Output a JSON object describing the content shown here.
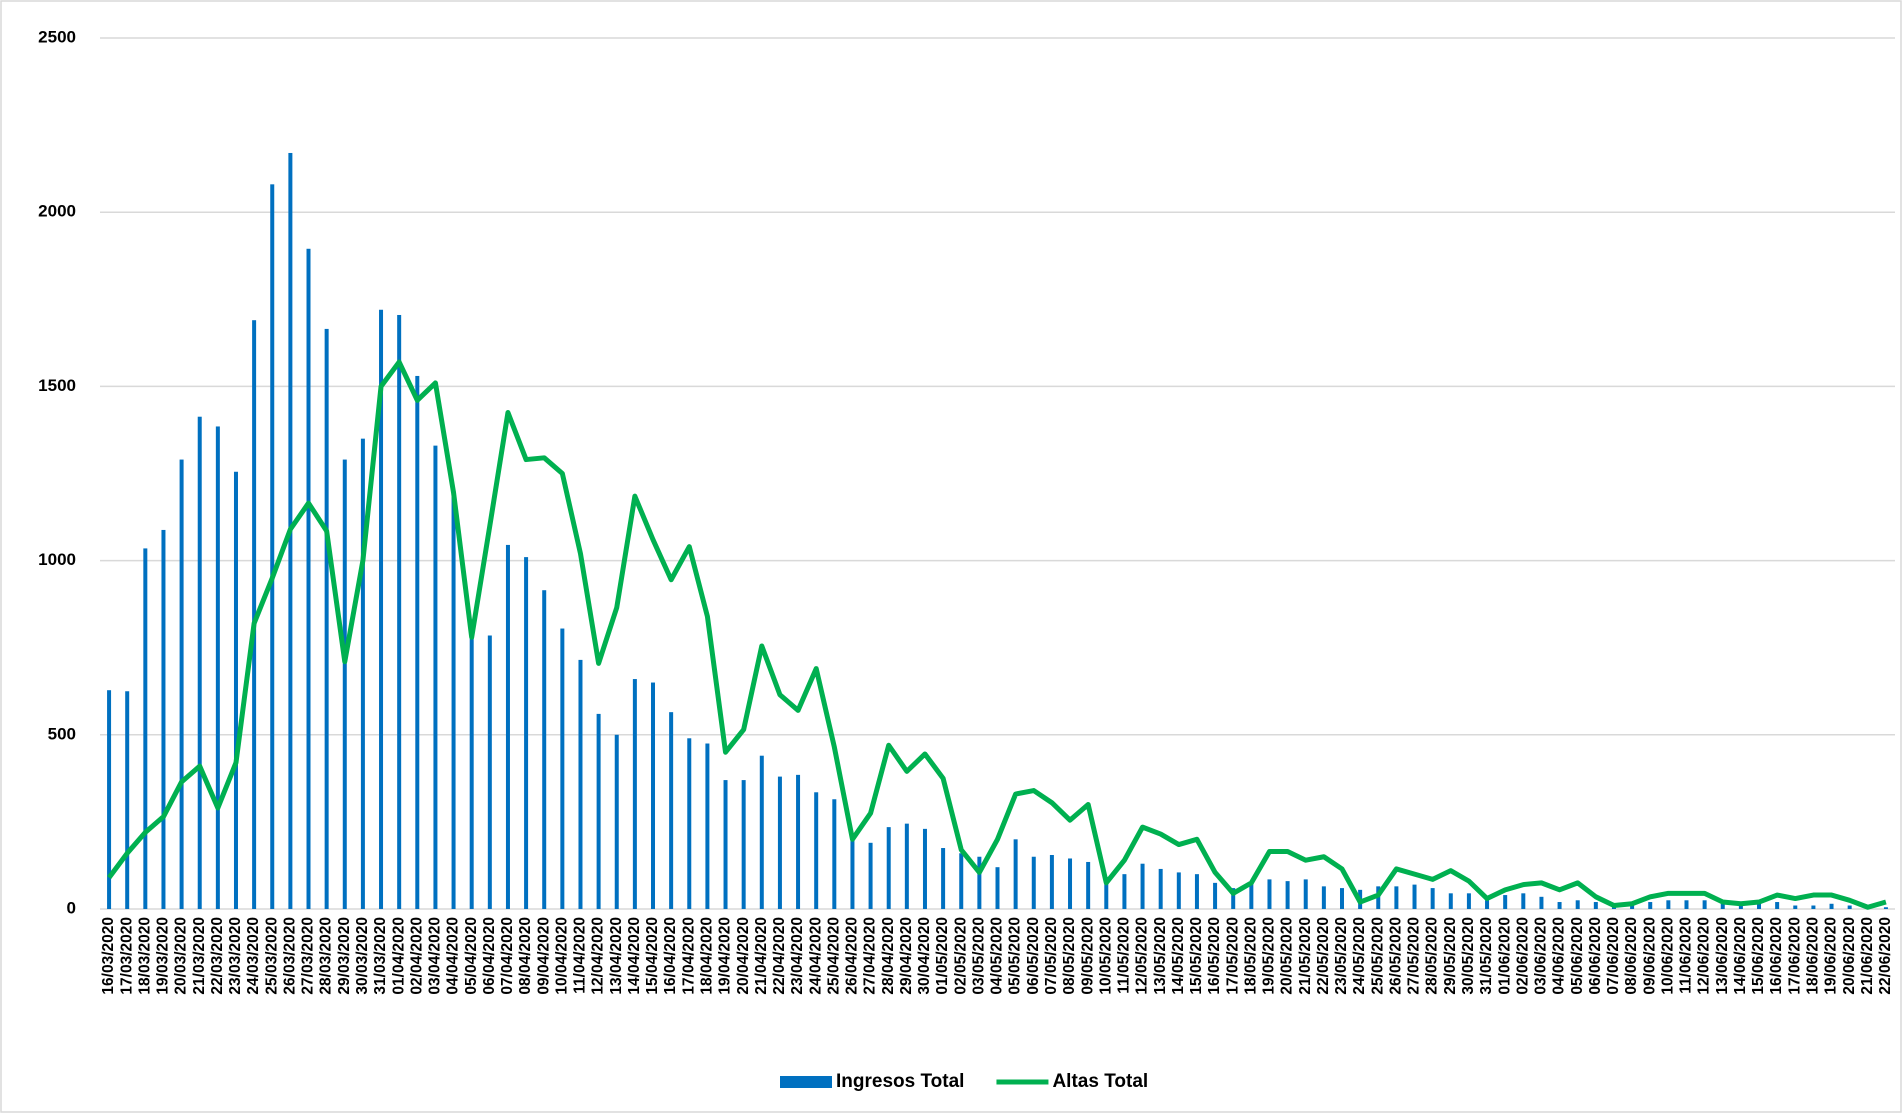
{
  "chart_data": {
    "type": "bar_line",
    "categories": [
      "16/03/2020",
      "17/03/2020",
      "18/03/2020",
      "19/03/2020",
      "20/03/2020",
      "21/03/2020",
      "22/03/2020",
      "23/03/2020",
      "24/03/2020",
      "25/03/2020",
      "26/03/2020",
      "27/03/2020",
      "28/03/2020",
      "29/03/2020",
      "30/03/2020",
      "31/03/2020",
      "01/04/2020",
      "02/04/2020",
      "03/04/2020",
      "04/04/2020",
      "05/04/2020",
      "06/04/2020",
      "07/04/2020",
      "08/04/2020",
      "09/04/2020",
      "10/04/2020",
      "11/04/2020",
      "12/04/2020",
      "13/04/2020",
      "14/04/2020",
      "15/04/2020",
      "16/04/2020",
      "17/04/2020",
      "18/04/2020",
      "19/04/2020",
      "20/04/2020",
      "21/04/2020",
      "22/04/2020",
      "23/04/2020",
      "24/04/2020",
      "25/04/2020",
      "26/04/2020",
      "27/04/2020",
      "28/04/2020",
      "29/04/2020",
      "30/04/2020",
      "01/05/2020",
      "02/05/2020",
      "03/05/2020",
      "04/05/2020",
      "05/05/2020",
      "06/05/2020",
      "07/05/2020",
      "08/05/2020",
      "09/05/2020",
      "10/05/2020",
      "11/05/2020",
      "12/05/2020",
      "13/05/2020",
      "14/05/2020",
      "15/05/2020",
      "16/05/2020",
      "17/05/2020",
      "18/05/2020",
      "19/05/2020",
      "20/05/2020",
      "21/05/2020",
      "22/05/2020",
      "23/05/2020",
      "24/05/2020",
      "25/05/2020",
      "26/05/2020",
      "27/05/2020",
      "28/05/2020",
      "29/05/2020",
      "30/05/2020",
      "31/05/2020",
      "01/06/2020",
      "02/06/2020",
      "03/06/2020",
      "04/06/2020",
      "05/06/2020",
      "06/06/2020",
      "07/06/2020",
      "08/06/2020",
      "09/06/2020",
      "10/06/2020",
      "11/06/2020",
      "12/06/2020",
      "13/06/2020",
      "14/06/2020",
      "15/06/2020",
      "16/06/2020",
      "17/06/2020",
      "18/06/2020",
      "19/06/2020",
      "20/06/2020",
      "21/06/2020",
      "22/06/2020"
    ],
    "series": [
      {
        "name": "Ingresos Total",
        "type": "bar",
        "color": "#0070c0",
        "values": [
          628,
          625,
          1035,
          1088,
          1290,
          1413,
          1385,
          1255,
          1690,
          2080,
          2170,
          1895,
          1665,
          1290,
          1350,
          1720,
          1705,
          1530,
          1330,
          1200,
          800,
          785,
          1045,
          1010,
          915,
          805,
          715,
          560,
          500,
          660,
          650,
          565,
          490,
          475,
          370,
          370,
          440,
          380,
          385,
          335,
          315,
          200,
          190,
          235,
          245,
          230,
          175,
          160,
          150,
          120,
          200,
          150,
          155,
          145,
          135,
          90,
          100,
          130,
          115,
          105,
          100,
          75,
          60,
          75,
          85,
          80,
          85,
          65,
          60,
          55,
          65,
          65,
          70,
          60,
          45,
          45,
          25,
          40,
          45,
          35,
          20,
          25,
          20,
          10,
          15,
          20,
          25,
          25,
          25,
          15,
          10,
          15,
          20,
          10,
          10,
          15,
          10,
          5,
          5
        ]
      },
      {
        "name": "Altas Total",
        "type": "line",
        "color": "#00b050",
        "values": [
          90,
          160,
          220,
          265,
          365,
          410,
          290,
          420,
          820,
          950,
          1090,
          1165,
          1085,
          710,
          1000,
          1500,
          1570,
          1460,
          1510,
          1195,
          780,
          1100,
          1425,
          1290,
          1295,
          1250,
          1020,
          705,
          865,
          1185,
          1060,
          945,
          1040,
          840,
          450,
          515,
          755,
          615,
          570,
          690,
          465,
          200,
          275,
          470,
          395,
          445,
          375,
          170,
          105,
          200,
          330,
          340,
          305,
          255,
          300,
          75,
          140,
          235,
          215,
          185,
          200,
          105,
          45,
          75,
          165,
          165,
          140,
          150,
          115,
          20,
          40,
          115,
          100,
          85,
          110,
          80,
          30,
          55,
          70,
          75,
          55,
          75,
          35,
          10,
          15,
          35,
          45,
          45,
          45,
          20,
          15,
          20,
          40,
          30,
          40,
          40,
          25,
          5,
          20
        ]
      }
    ],
    "ylim": [
      0,
      2500
    ],
    "yticks": [
      0,
      500,
      1000,
      1500,
      2000,
      2500
    ],
    "grid": true,
    "legend": "bottom"
  }
}
